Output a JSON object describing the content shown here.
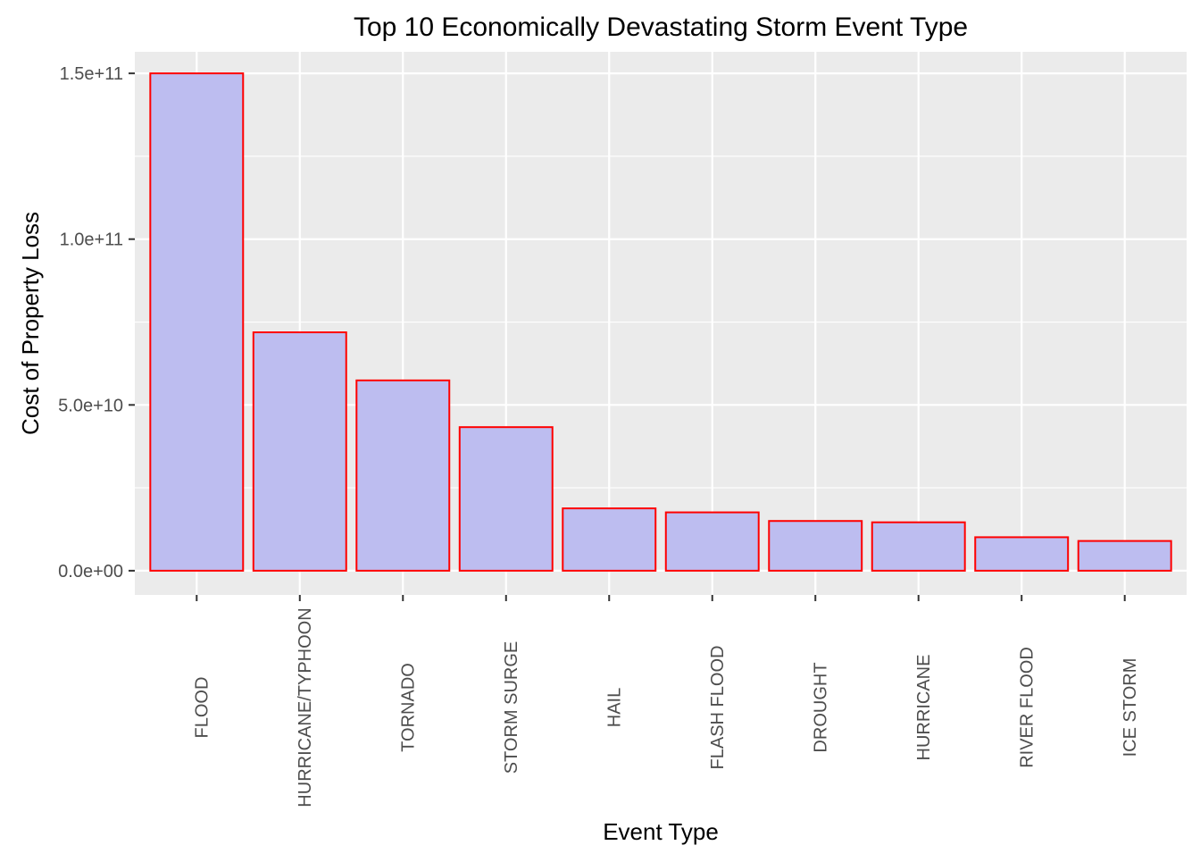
{
  "chart_data": {
    "type": "bar",
    "title": "Top 10 Economically Devastating Storm Event Type",
    "xlabel": "Event Type",
    "ylabel": "Cost of Property Loss",
    "categories": [
      "FLOOD",
      "HURRICANE/TYPHOON",
      "TORNADO",
      "STORM SURGE",
      "HAIL",
      "FLASH FLOOD",
      "DROUGHT",
      "HURRICANE",
      "RIVER FLOOD",
      "ICE STORM"
    ],
    "values": [
      150000000000,
      71900000000,
      57400000000,
      43300000000,
      18800000000,
      17600000000,
      15000000000,
      14600000000,
      10100000000,
      8970000000
    ],
    "ylim": [
      -7300000000,
      156500000000
    ],
    "yticks": [
      0,
      50000000000,
      100000000000,
      150000000000
    ],
    "yticklabels": [
      "0.0e+00",
      "5.0e+10",
      "1.0e+11",
      "1.5e+11"
    ],
    "grid": true,
    "legend": "none",
    "colors": {
      "panel_background": "#EBEBEB",
      "grid": "#FFFFFF",
      "bar_fill": "#BDBDF0",
      "bar_outline": "#FF0000",
      "tick_label": "#4D4D4D",
      "axis_tick": "#333333",
      "text": "#000000"
    }
  }
}
